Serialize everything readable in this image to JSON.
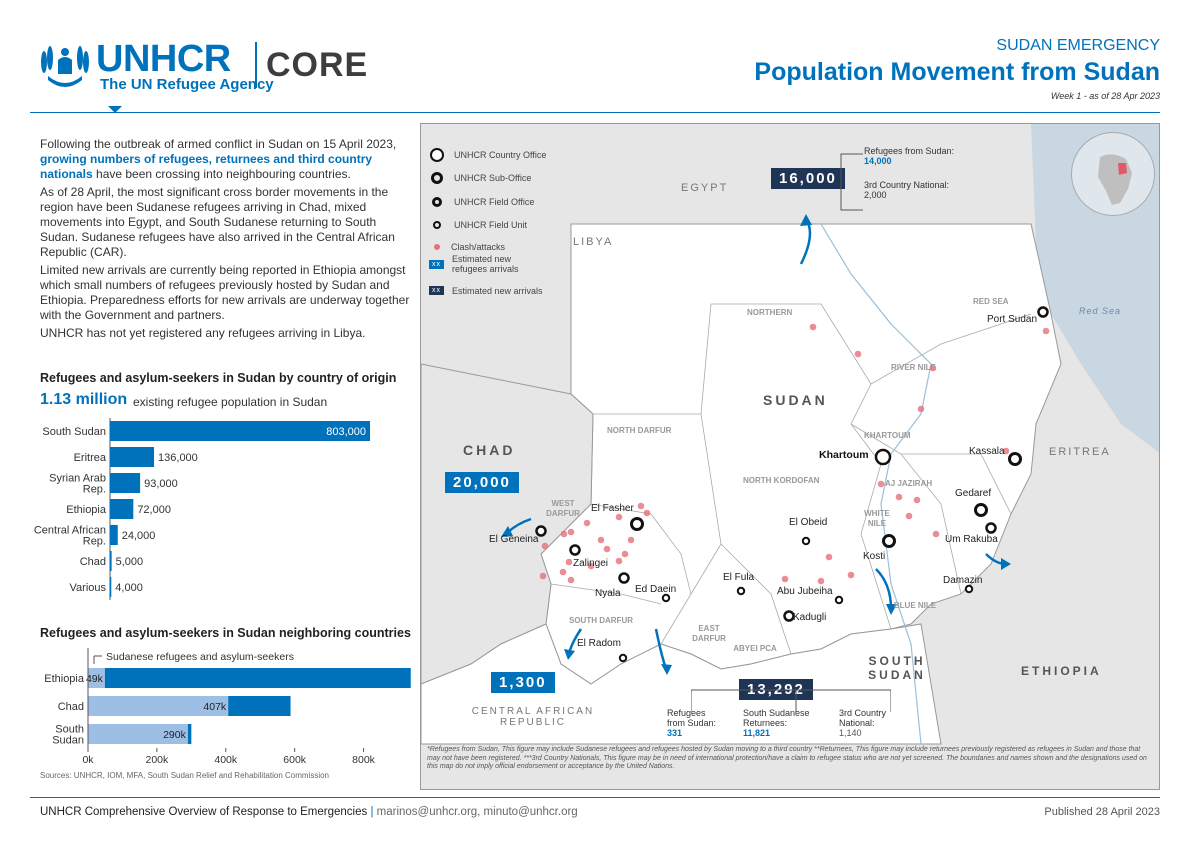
{
  "header": {
    "logo_main": "UNHCR",
    "logo_sub": "The UN Refugee Agency",
    "logo_core": "CORE",
    "emergency": "SUDAN EMERGENCY",
    "title": "Population Movement from Sudan",
    "week": "Week 1 - as of 28 Apr 2023"
  },
  "intro": {
    "p1_a": "Following the outbreak of armed conflict in Sudan on 15 April 2023, ",
    "p1_hl": "growing numbers of refugees, returnees and third country nationals",
    "p1_b": " have been crossing into neighbouring countries.",
    "p2": "As of 28 April, the most significant cross border movements in the region have been Sudanese refugees arriving in Chad, mixed movements into Egypt, and South Sudanese returning to South Sudan. Sudanese refugees have also arrived in the Central African Republic (CAR).",
    "p3": "Limited new arrivals are currently being reported in Ethiopia amongst which small numbers of refugees previously hosted by Sudan and Ethiopia. Preparedness efforts for new arrivals are underway together with the Government and partners.",
    "p4": "UNHCR has not yet registered any refugees arriving in Libya."
  },
  "chart1_title": "Refugees and asylum-seekers in Sudan by country of origin",
  "big_number": "1.13 million",
  "big_number_label": "existing refugee population in Sudan",
  "chart2_title": "Refugees and asylum-seekers in Sudan neighboring countries",
  "chart2_legend": "Sudanese refugees and asylum-seekers",
  "chart_data": [
    {
      "type": "bar",
      "orientation": "horizontal",
      "categories": [
        "South Sudan",
        "Eritrea",
        "Syrian Arab Rep.",
        "Ethiopia",
        "Central African Rep.",
        "Chad",
        "Various"
      ],
      "values": [
        803000,
        136000,
        93000,
        72000,
        24000,
        5000,
        4000
      ],
      "value_labels": [
        "803,000",
        "136,000",
        "93,000",
        "72,000",
        "24,000",
        "5,000",
        "4,000"
      ],
      "color": "#0072bc"
    },
    {
      "type": "bar",
      "orientation": "horizontal",
      "stacked": true,
      "categories": [
        "Ethiopia",
        "Chad",
        "South Sudan"
      ],
      "series": [
        {
          "name": "Sudanese refugees and asylum-seekers",
          "values": [
            49000,
            407000,
            290000
          ],
          "labels": [
            "49k",
            "407k",
            "290k"
          ],
          "color": "#9dbfe6"
        },
        {
          "values": [
            888000,
            181000,
            10000
          ],
          "color": "#0072bc"
        }
      ],
      "x_ticks": [
        "0k",
        "200k",
        "400k",
        "600k",
        "800k"
      ],
      "xlim": [
        0,
        900000
      ]
    }
  ],
  "sources": "Sources: UNHCR, IOM, MFA, South Sudan Relief and Rehabilitation Commission",
  "map": {
    "legend": [
      {
        "icon": "country-office-icon",
        "label": "UNHCR Country Office"
      },
      {
        "icon": "sub-office-icon",
        "label": "UNHCR Sub-Office"
      },
      {
        "icon": "field-office-icon",
        "label": "UNHCR Field Office"
      },
      {
        "icon": "field-unit-icon",
        "label": "UNHCR Field Unit"
      },
      {
        "icon": "clash-icon",
        "label": "Clash/attacks"
      },
      {
        "icon": "new-refugee-box-icon",
        "label": "Estimated new refugees arrivals",
        "box": "xx"
      },
      {
        "icon": "new-arrival-box-icon",
        "label": "Estimated new arrivals",
        "box": "xx"
      }
    ],
    "countries": {
      "egypt": "EGYPT",
      "libya": "LIBYA",
      "chad": "CHAD",
      "sudan": "SUDAN",
      "eritrea": "ERITREA",
      "ethiopia": "ETHIOPIA",
      "south_sudan": "SOUTH SUDAN",
      "car": "CENTRAL AFRICAN REPUBLIC",
      "red_sea": "Red Sea"
    },
    "states": [
      "NORTHERN",
      "RED SEA",
      "RIVER NILE",
      "NORTH DARFUR",
      "KHARTOUM",
      "NORTH KORDOFAN",
      "AJ JAZIRAH",
      "WEST DARFUR",
      "WHITE NILE",
      "SOUTH DARFUR",
      "EAST DARFUR",
      "BLUE NILE",
      "ABYEI PCA"
    ],
    "cities": [
      "Port Sudan",
      "Kassala",
      "Khartoum",
      "Gedaref",
      "Um Rakuba",
      "El Obeid",
      "Kosti",
      "El Fasher",
      "El Geneina",
      "Zalingei",
      "Nyala",
      "Ed Daein",
      "El Fula",
      "Abu Jubeiha",
      "Kadugli",
      "Damazin",
      "El Radom"
    ],
    "numbers": {
      "egypt": "16,000",
      "chad": "20,000",
      "car": "1,300",
      "south_sudan": "13,292"
    },
    "egypt_info": {
      "refugees_label": "Refugees from Sudan:",
      "refugees_value": "14,000",
      "tcn_label": "3rd Country National:",
      "tcn_value": "2,000"
    },
    "ss_info": {
      "refugees_label": "Refugees from Sudan:",
      "refugees_value": "331",
      "returnees_label": "South Sudanese Returnees:",
      "returnees_value": "11,821",
      "tcn_label": "3rd Country National:",
      "tcn_value": "1,140"
    },
    "disclaimer": "*Refugees from Sudan, This figure may include Sudanese refugees and refugees hosted by Sudan moving to a third country **Returnees, This figure may include  returnees previously registered as refugees in Sudan and those that may not have been registered. ***3rd Country Nationals, This figure may be in need of international protection/have a claim to refugee status who are not yet screened. The boundaries and names shown and the designations used on this map do not imply official endorsement or acceptance by the United Nations."
  },
  "footer": {
    "left_main": "UNHCR Comprehensive Overview of Response to Emergencies",
    "left_sep": " | ",
    "left_emails": "marinos@unhcr.org, minuto@unhcr.org",
    "right": "Published 28 April 2023"
  },
  "colors": {
    "brand_blue": "#0072bc",
    "dark_navy": "#1f3556",
    "light_blue": "#9dbfe6",
    "clash_red": "#e8707a"
  }
}
